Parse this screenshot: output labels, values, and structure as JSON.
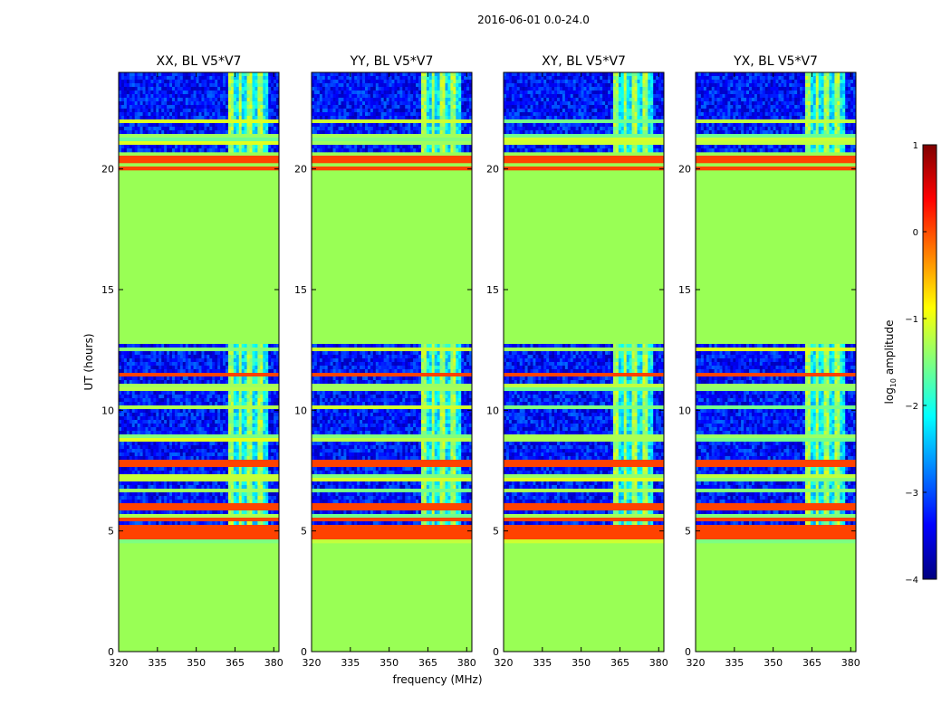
{
  "suptitle": "2016-06-01 0.0-24.0",
  "chart_data": {
    "type": "heatmap",
    "title": "2016-06-01 0.0-24.0",
    "xlabel": "frequency (MHz)",
    "ylabel": "UT (hours)",
    "xlim": [
      320,
      382
    ],
    "ylim": [
      0,
      24
    ],
    "xticks": [
      "320",
      "335",
      "350",
      "365",
      "380"
    ],
    "yticks": [
      "0",
      "5",
      "10",
      "15",
      "20"
    ],
    "colorbar": {
      "label": "log",
      "label_sub": "10",
      "label_rest": " amplitude",
      "range": [
        -4,
        1
      ],
      "ticks": [
        "1",
        "0",
        "−1",
        "−2",
        "−3",
        "−4"
      ],
      "colors": [
        "#00007f",
        "#0000ff",
        "#007fff",
        "#00ffff",
        "#7fff7f",
        "#ffff00",
        "#ff7f00",
        "#ff0000",
        "#7f0000"
      ]
    },
    "panels": [
      {
        "title": "XX, BL V5*V7"
      },
      {
        "title": "YY, BL V5*V7"
      },
      {
        "title": "XY, BL V5*V7"
      },
      {
        "title": "YX, BL V5*V7"
      }
    ],
    "fill_level": -1.2,
    "fill_color": "#99ff55",
    "noise_level": -3.3,
    "rfi_band_mhz": [
      362,
      378
    ],
    "observed_hours": [
      [
        4.5,
        12.7
      ],
      [
        20.7,
        24.0
      ]
    ],
    "flagged_hours": [
      [
        0.0,
        4.5
      ],
      [
        12.7,
        20.7
      ]
    ],
    "strong_rfi_hours": [
      4.8,
      5.0,
      5.2,
      5.5,
      5.9,
      6.1,
      7.8,
      11.5,
      20.0,
      20.4
    ]
  }
}
